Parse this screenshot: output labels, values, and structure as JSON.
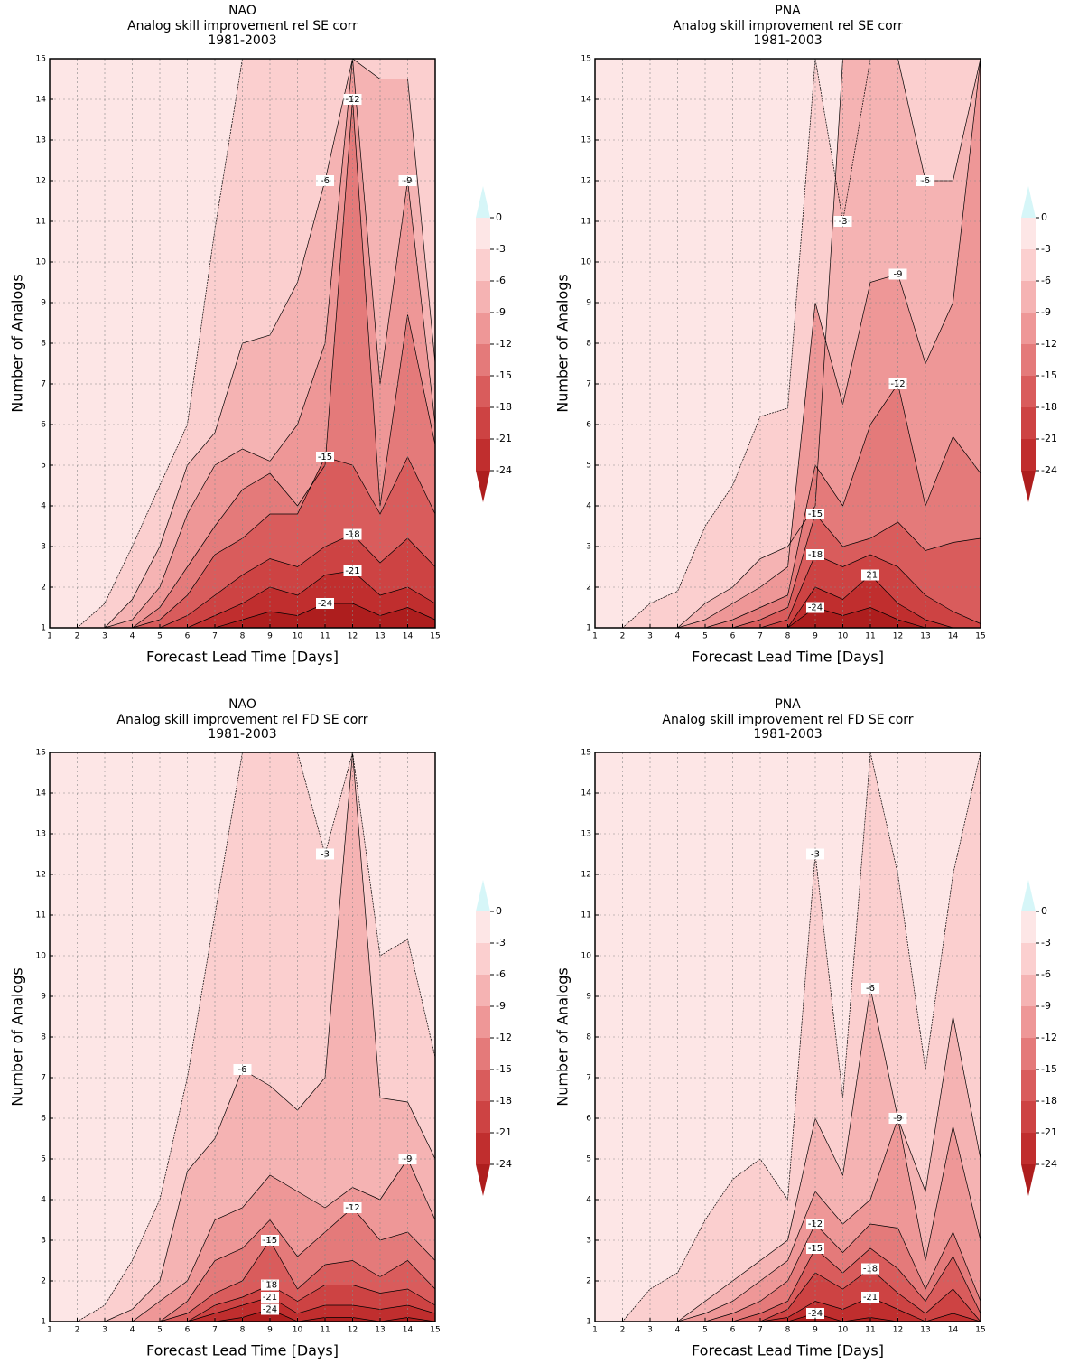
{
  "chart_data": [
    {
      "type": "contour",
      "title": "NAO",
      "subtitle": "Analog skill improvement rel SE corr",
      "period": "1981-2003",
      "x_label": "Forecast Lead Time  [Days]",
      "y_label": "Number of Analogs",
      "xlim": [
        1,
        15
      ],
      "ylim": [
        1,
        15
      ],
      "xticks": [
        1,
        2,
        3,
        4,
        5,
        6,
        7,
        8,
        9,
        10,
        11,
        12,
        13,
        14,
        15
      ],
      "yticks": [
        1,
        2,
        3,
        4,
        5,
        6,
        7,
        8,
        9,
        10,
        11,
        12,
        13,
        14,
        15
      ],
      "grid": true,
      "x": [
        1,
        2,
        3,
        4,
        5,
        6,
        7,
        8,
        9,
        10,
        11,
        12,
        13,
        14,
        15
      ],
      "contours": [
        {
          "level": -3,
          "values": [
            1,
            1,
            1.6,
            3,
            4.5,
            6,
            10.8,
            15,
            15,
            15,
            15,
            15,
            15,
            15,
            15
          ]
        },
        {
          "level": -6,
          "values": [
            1,
            1,
            1,
            1.7,
            3,
            5,
            5.8,
            8,
            8.2,
            9.5,
            12,
            15,
            14.5,
            14.5,
            7.5
          ]
        },
        {
          "level": -9,
          "values": [
            1,
            1,
            1,
            1.2,
            2,
            3.8,
            5,
            5.4,
            5.1,
            6,
            8,
            15,
            7,
            12,
            6
          ]
        },
        {
          "level": -12,
          "values": [
            1,
            1,
            1,
            1,
            1.5,
            2.5,
            3.5,
            4.4,
            4.8,
            4,
            5,
            14,
            4,
            8.7,
            5.5
          ]
        },
        {
          "level": -15,
          "values": [
            1,
            1,
            1,
            1,
            1.2,
            1.8,
            2.8,
            3.2,
            3.8,
            3.8,
            5.2,
            5,
            3.8,
            5.2,
            3.8
          ]
        },
        {
          "level": -18,
          "values": [
            1,
            1,
            1,
            1,
            1,
            1.3,
            1.8,
            2.3,
            2.7,
            2.5,
            3,
            3.3,
            2.6,
            3.2,
            2.5
          ]
        },
        {
          "level": -21,
          "values": [
            1,
            1,
            1,
            1,
            1,
            1,
            1.3,
            1.6,
            2,
            1.8,
            2.3,
            2.4,
            1.8,
            2,
            1.6
          ]
        },
        {
          "level": -24,
          "values": [
            1,
            1,
            1,
            1,
            1,
            1,
            1,
            1.2,
            1.4,
            1.3,
            1.6,
            1.6,
            1.3,
            1.5,
            1.2
          ]
        }
      ],
      "colorbar": {
        "levels": [
          0,
          -3,
          -6,
          -9,
          -12,
          -15,
          -18,
          -21,
          -24
        ],
        "colors": [
          "#d6f6f8",
          "#fde6e6",
          "#fbcfcf",
          "#f5b3b3",
          "#ee9797",
          "#e47a7a",
          "#d95c5c",
          "#cd4343",
          "#c02e2e",
          "#ae1e1e"
        ]
      }
    },
    {
      "type": "contour",
      "title": "PNA",
      "subtitle": "Analog skill improvement rel SE corr",
      "period": "1981-2003",
      "x_label": "Forecast Lead Time  [Days]",
      "y_label": "Number of Analogs",
      "xlim": [
        1,
        15
      ],
      "ylim": [
        1,
        15
      ],
      "xticks": [
        1,
        2,
        3,
        4,
        5,
        6,
        7,
        8,
        9,
        10,
        11,
        12,
        13,
        14,
        15
      ],
      "yticks": [
        1,
        2,
        3,
        4,
        5,
        6,
        7,
        8,
        9,
        10,
        11,
        12,
        13,
        14,
        15
      ],
      "grid": true,
      "x": [
        1,
        2,
        3,
        4,
        5,
        6,
        7,
        8,
        9,
        10,
        11,
        12,
        13,
        14,
        15
      ],
      "contours": [
        {
          "level": -3,
          "values": [
            1,
            1,
            1.6,
            1.9,
            3.5,
            4.5,
            6.2,
            6.4,
            15,
            11,
            15,
            15,
            15,
            15,
            15
          ]
        },
        {
          "level": -6,
          "values": [
            1,
            1,
            1,
            1,
            1.6,
            2,
            2.7,
            3,
            4,
            15,
            15,
            15,
            12,
            12,
            15
          ]
        },
        {
          "level": -9,
          "values": [
            1,
            1,
            1,
            1,
            1.2,
            1.6,
            2,
            2.5,
            9,
            6.5,
            9.5,
            9.7,
            7.5,
            9,
            15
          ]
        },
        {
          "level": -12,
          "values": [
            1,
            1,
            1,
            1,
            1,
            1.2,
            1.5,
            1.8,
            5,
            4,
            6,
            7,
            4,
            5.7,
            4.8
          ]
        },
        {
          "level": -15,
          "values": [
            1,
            1,
            1,
            1,
            1,
            1,
            1.2,
            1.5,
            3.8,
            3,
            3.2,
            3.6,
            2.9,
            3.1,
            3.2
          ]
        },
        {
          "level": -18,
          "values": [
            1,
            1,
            1,
            1,
            1,
            1,
            1,
            1.2,
            2.8,
            2.5,
            2.8,
            2.5,
            1.8,
            1.4,
            1.1
          ]
        },
        {
          "level": -21,
          "values": [
            1,
            1,
            1,
            1,
            1,
            1,
            1,
            1,
            2,
            1.7,
            2.3,
            1.6,
            1.2,
            1,
            1
          ]
        },
        {
          "level": -24,
          "values": [
            1,
            1,
            1,
            1,
            1,
            1,
            1,
            1,
            1.5,
            1.3,
            1.5,
            1.2,
            1,
            1,
            1
          ]
        }
      ],
      "colorbar": {
        "levels": [
          0,
          -3,
          -6,
          -9,
          -12,
          -15,
          -18,
          -21,
          -24
        ],
        "colors": [
          "#d6f6f8",
          "#fde6e6",
          "#fbcfcf",
          "#f5b3b3",
          "#ee9797",
          "#e47a7a",
          "#d95c5c",
          "#cd4343",
          "#c02e2e",
          "#ae1e1e"
        ]
      }
    },
    {
      "type": "contour",
      "title": "NAO",
      "subtitle": "Analog skill improvement rel FD SE corr",
      "period": "1981-2003",
      "x_label": "Forecast Lead Time  [Days]",
      "y_label": "Number of Analogs",
      "xlim": [
        1,
        15
      ],
      "ylim": [
        1,
        15
      ],
      "xticks": [
        1,
        2,
        3,
        4,
        5,
        6,
        7,
        8,
        9,
        10,
        11,
        12,
        13,
        14,
        15
      ],
      "yticks": [
        1,
        2,
        3,
        4,
        5,
        6,
        7,
        8,
        9,
        10,
        11,
        12,
        13,
        14,
        15
      ],
      "grid": true,
      "x": [
        1,
        2,
        3,
        4,
        5,
        6,
        7,
        8,
        9,
        10,
        11,
        12,
        13,
        14,
        15
      ],
      "contours": [
        {
          "level": -3,
          "values": [
            1,
            1,
            1.4,
            2.5,
            4,
            7,
            11,
            15,
            15,
            15,
            12.5,
            15,
            10,
            10.4,
            7.5
          ]
        },
        {
          "level": -6,
          "values": [
            1,
            1,
            1,
            1.3,
            2,
            4.7,
            5.5,
            7.2,
            6.8,
            6.2,
            7,
            15,
            6.5,
            6.4,
            5
          ]
        },
        {
          "level": -9,
          "values": [
            1,
            1,
            1,
            1,
            1.5,
            2,
            3.5,
            3.8,
            4.6,
            4.2,
            3.8,
            4.3,
            4,
            5,
            3.5
          ]
        },
        {
          "level": -12,
          "values": [
            1,
            1,
            1,
            1,
            1,
            1.5,
            2.5,
            2.8,
            3.5,
            2.6,
            3.2,
            3.8,
            3,
            3.2,
            2.5
          ]
        },
        {
          "level": -15,
          "values": [
            1,
            1,
            1,
            1,
            1,
            1.2,
            1.7,
            2,
            3,
            1.8,
            2.4,
            2.5,
            2.1,
            2.5,
            1.8
          ]
        },
        {
          "level": -18,
          "values": [
            1,
            1,
            1,
            1,
            1,
            1,
            1.4,
            1.6,
            1.9,
            1.5,
            1.9,
            1.9,
            1.7,
            1.8,
            1.4
          ]
        },
        {
          "level": -21,
          "values": [
            1,
            1,
            1,
            1,
            1,
            1,
            1.2,
            1.4,
            1.6,
            1.2,
            1.4,
            1.4,
            1.3,
            1.4,
            1.2
          ]
        },
        {
          "level": -24,
          "values": [
            1,
            1,
            1,
            1,
            1,
            1,
            1,
            1.1,
            1.3,
            1,
            1.1,
            1.1,
            1,
            1.1,
            1
          ]
        }
      ],
      "colorbar": {
        "levels": [
          0,
          -3,
          -6,
          -9,
          -12,
          -15,
          -18,
          -21,
          -24
        ],
        "colors": [
          "#d6f6f8",
          "#fde6e6",
          "#fbcfcf",
          "#f5b3b3",
          "#ee9797",
          "#e47a7a",
          "#d95c5c",
          "#cd4343",
          "#c02e2e",
          "#ae1e1e"
        ]
      }
    },
    {
      "type": "contour",
      "title": "PNA",
      "subtitle": "Analog skill improvement rel FD SE corr",
      "period": "1981-2003",
      "x_label": "Forecast Lead Time  [Days]",
      "y_label": "Number of Analogs",
      "xlim": [
        1,
        15
      ],
      "ylim": [
        1,
        15
      ],
      "xticks": [
        1,
        2,
        3,
        4,
        5,
        6,
        7,
        8,
        9,
        10,
        11,
        12,
        13,
        14,
        15
      ],
      "yticks": [
        1,
        2,
        3,
        4,
        5,
        6,
        7,
        8,
        9,
        10,
        11,
        12,
        13,
        14,
        15
      ],
      "grid": true,
      "x": [
        1,
        2,
        3,
        4,
        5,
        6,
        7,
        8,
        9,
        10,
        11,
        12,
        13,
        14,
        15
      ],
      "contours": [
        {
          "level": -3,
          "values": [
            1,
            1,
            1.8,
            2.2,
            3.5,
            4.5,
            5,
            4,
            12.5,
            6.5,
            15,
            12,
            7.2,
            12,
            15
          ]
        },
        {
          "level": -6,
          "values": [
            1,
            1,
            1,
            1,
            1.5,
            2,
            2.5,
            3,
            6,
            4.6,
            9.2,
            6,
            4.2,
            8.5,
            5
          ]
        },
        {
          "level": -9,
          "values": [
            1,
            1,
            1,
            1,
            1.2,
            1.5,
            2,
            2.5,
            4.2,
            3.4,
            4,
            6,
            2.5,
            5.8,
            3
          ]
        },
        {
          "level": -12,
          "values": [
            1,
            1,
            1,
            1,
            1,
            1.2,
            1.5,
            2,
            3.4,
            2.7,
            3.4,
            3.3,
            1.8,
            3.2,
            1.5
          ]
        },
        {
          "level": -15,
          "values": [
            1,
            1,
            1,
            1,
            1,
            1,
            1.2,
            1.5,
            2.8,
            2.2,
            2.8,
            2.3,
            1.5,
            2.6,
            1.2
          ]
        },
        {
          "level": -18,
          "values": [
            1,
            1,
            1,
            1,
            1,
            1,
            1,
            1.3,
            2.2,
            1.8,
            2.3,
            1.7,
            1.2,
            1.8,
            1
          ]
        },
        {
          "level": -21,
          "values": [
            1,
            1,
            1,
            1,
            1,
            1,
            1,
            1.1,
            1.5,
            1.3,
            1.6,
            1.3,
            1,
            1.2,
            1
          ]
        },
        {
          "level": -24,
          "values": [
            1,
            1,
            1,
            1,
            1,
            1,
            1,
            1,
            1.2,
            1,
            1.1,
            1,
            1,
            1,
            1
          ]
        }
      ],
      "colorbar": {
        "levels": [
          0,
          -3,
          -6,
          -9,
          -12,
          -15,
          -18,
          -21,
          -24
        ],
        "colors": [
          "#d6f6f8",
          "#fde6e6",
          "#fbcfcf",
          "#f5b3b3",
          "#ee9797",
          "#e47a7a",
          "#d95c5c",
          "#cd4343",
          "#c02e2e",
          "#ae1e1e"
        ]
      }
    }
  ]
}
